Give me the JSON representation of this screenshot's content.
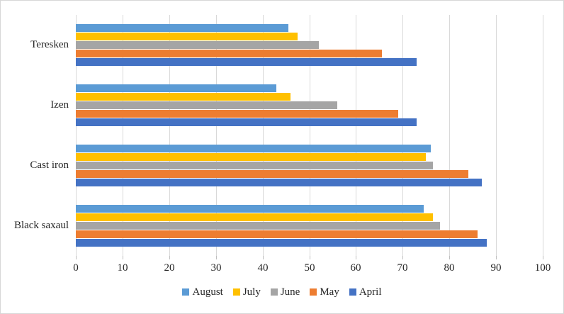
{
  "chart_data": {
    "type": "bar",
    "orientation": "horizontal",
    "title": "",
    "xlabel": "",
    "ylabel": "",
    "categories": [
      "Teresken",
      "Izen",
      "Cast iron",
      "Black saxaul"
    ],
    "series": [
      {
        "name": "August",
        "color": "#5B9BD5",
        "values": [
          45.5,
          43,
          76,
          74.5
        ]
      },
      {
        "name": "July",
        "color": "#FFC000",
        "values": [
          47.5,
          46,
          75,
          76.5
        ]
      },
      {
        "name": "June",
        "color": "#A5A5A5",
        "values": [
          52,
          56,
          76.5,
          78
        ]
      },
      {
        "name": "May",
        "color": "#ED7D31",
        "values": [
          65.5,
          69,
          84,
          86
        ]
      },
      {
        "name": "April",
        "color": "#4472C4",
        "values": [
          73,
          73,
          87,
          88
        ]
      }
    ],
    "xlim": [
      0,
      100
    ],
    "x_ticks": [
      0,
      10,
      20,
      30,
      40,
      50,
      60,
      70,
      80,
      90,
      100
    ],
    "grid": true,
    "legend_position": "bottom",
    "style": {
      "gridline_color": "#D9D9D9",
      "tick_color": "#BFBFBF",
      "text_color": "#262626",
      "border_color": "#D7D7D7",
      "background": "#FFFFFF"
    }
  }
}
